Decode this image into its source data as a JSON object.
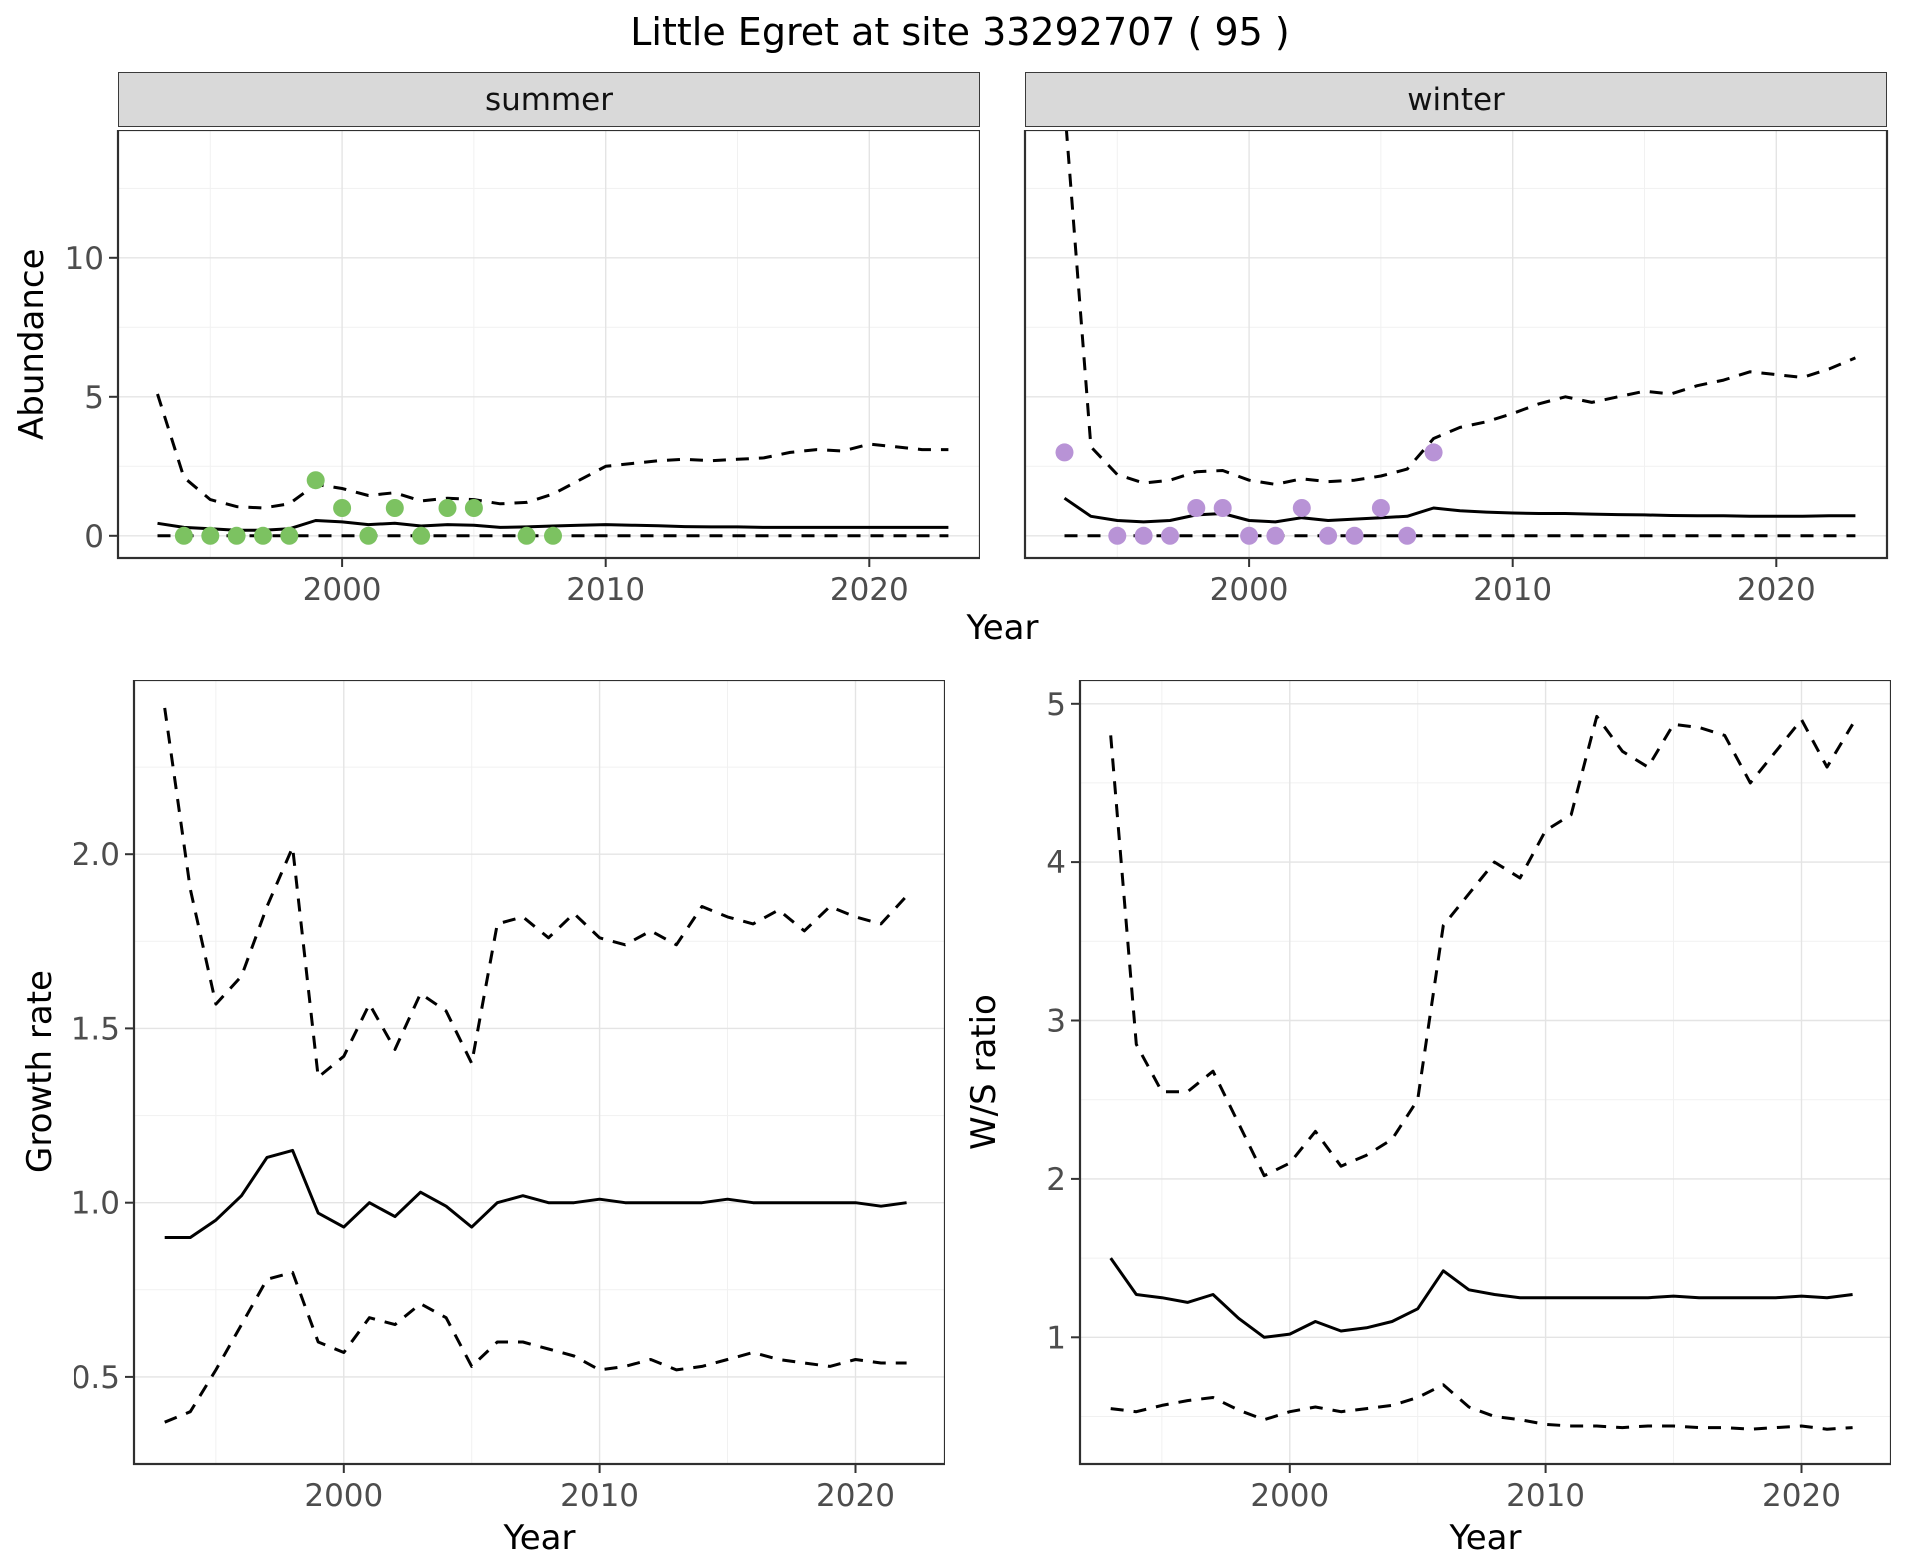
{
  "title": "Little Egret at site 33292707 ( 95 )",
  "facets": {
    "summer": "summer",
    "winter": "winter"
  },
  "axis_labels": {
    "abundance": "Abundance",
    "year": "Year",
    "growth": "Growth rate",
    "ws": "W/S ratio"
  },
  "colors": {
    "summer_points": "#7cc261",
    "winter_points": "#b893d6",
    "line": "#000000",
    "grid_major": "#e4e4e4",
    "grid_minor": "#f1f1f1",
    "panel_border": "#2f2f2f",
    "strip_bg": "#d9d9d9",
    "tick_text": "#4d4d4d"
  },
  "chart_data": [
    {
      "id": "summer-abundance",
      "target": "chart-summer",
      "type": "line",
      "title": "summer",
      "xlabel": "Year",
      "ylabel": "Abundance",
      "xlim": [
        1991.5,
        2024.2
      ],
      "ylim": [
        -0.8,
        14.6
      ],
      "x_ticks": [
        2000,
        2010,
        2020
      ],
      "x_tick_labels": [
        "2000",
        "2010",
        "2020"
      ],
      "x_minor": [
        1995,
        2005,
        2015
      ],
      "y_ticks": [
        0,
        5,
        10
      ],
      "y_tick_labels": [
        "0",
        "5",
        "10"
      ],
      "y_minor": [
        2.5,
        7.5,
        12.5
      ],
      "years": [
        1993,
        1994,
        1995,
        1996,
        1997,
        1998,
        1999,
        2000,
        2001,
        2002,
        2003,
        2004,
        2005,
        2006,
        2007,
        2008,
        2009,
        2010,
        2011,
        2012,
        2013,
        2014,
        2015,
        2016,
        2017,
        2018,
        2019,
        2020,
        2021,
        2022,
        2023
      ],
      "series": [
        {
          "name": "upper-ci",
          "dashed": true,
          "values": [
            5.1,
            2.1,
            1.3,
            1.05,
            1.0,
            1.15,
            1.85,
            1.7,
            1.45,
            1.55,
            1.25,
            1.35,
            1.3,
            1.15,
            1.2,
            1.5,
            2.0,
            2.5,
            2.6,
            2.7,
            2.75,
            2.7,
            2.75,
            2.8,
            3.0,
            3.1,
            3.05,
            3.3,
            3.2,
            3.1,
            3.1
          ]
        },
        {
          "name": "mean",
          "dashed": false,
          "values": [
            0.45,
            0.3,
            0.25,
            0.2,
            0.2,
            0.25,
            0.55,
            0.5,
            0.4,
            0.45,
            0.35,
            0.4,
            0.38,
            0.3,
            0.32,
            0.35,
            0.38,
            0.4,
            0.38,
            0.36,
            0.33,
            0.32,
            0.32,
            0.3,
            0.3,
            0.3,
            0.3,
            0.3,
            0.3,
            0.3,
            0.3
          ]
        },
        {
          "name": "lower-ci",
          "dashed": true,
          "values": [
            0,
            0,
            0,
            0,
            0,
            0,
            0,
            0,
            0,
            0,
            0,
            0,
            0,
            0,
            0,
            0,
            0,
            0,
            0,
            0,
            0,
            0,
            0,
            0,
            0,
            0,
            0,
            0,
            0,
            0,
            0
          ]
        }
      ],
      "points": {
        "name": "observed-counts-summer",
        "color": "#7cc261",
        "data": [
          [
            1994,
            0
          ],
          [
            1995,
            0
          ],
          [
            1996,
            0
          ],
          [
            1997,
            0
          ],
          [
            1998,
            0
          ],
          [
            1999,
            2
          ],
          [
            2000,
            1
          ],
          [
            2001,
            0
          ],
          [
            2002,
            1
          ],
          [
            2003,
            0
          ],
          [
            2004,
            1
          ],
          [
            2005,
            1
          ],
          [
            2007,
            0
          ],
          [
            2008,
            0
          ]
        ]
      }
    },
    {
      "id": "winter-abundance",
      "target": "chart-winter",
      "type": "line",
      "title": "winter",
      "xlabel": "Year",
      "ylabel": "Abundance",
      "xlim": [
        1991.5,
        2024.2
      ],
      "ylim": [
        -0.8,
        14.6
      ],
      "x_ticks": [
        2000,
        2010,
        2020
      ],
      "x_tick_labels": [
        "2000",
        "2010",
        "2020"
      ],
      "x_minor": [
        1995,
        2005,
        2015
      ],
      "y_ticks": [
        0,
        5,
        10
      ],
      "y_tick_labels": [
        "0",
        "5",
        "10"
      ],
      "y_minor": [
        2.5,
        7.5,
        12.5
      ],
      "years": [
        1993,
        1994,
        1995,
        1996,
        1997,
        1998,
        1999,
        2000,
        2001,
        2002,
        2003,
        2004,
        2005,
        2006,
        2007,
        2008,
        2009,
        2010,
        2011,
        2012,
        2013,
        2014,
        2015,
        2016,
        2017,
        2018,
        2019,
        2020,
        2021,
        2022,
        2023
      ],
      "series": [
        {
          "name": "upper-ci",
          "dashed": true,
          "values": [
            15.5,
            3.2,
            2.2,
            1.9,
            2.0,
            2.3,
            2.35,
            2.0,
            1.85,
            2.05,
            1.95,
            2.0,
            2.15,
            2.4,
            3.5,
            3.9,
            4.1,
            4.4,
            4.75,
            5.0,
            4.8,
            5.0,
            5.2,
            5.1,
            5.4,
            5.6,
            5.9,
            5.8,
            5.7,
            6.0,
            6.4
          ]
        },
        {
          "name": "mean",
          "dashed": false,
          "values": [
            1.35,
            0.7,
            0.55,
            0.5,
            0.55,
            0.75,
            0.8,
            0.55,
            0.5,
            0.65,
            0.55,
            0.6,
            0.65,
            0.7,
            1.0,
            0.9,
            0.85,
            0.82,
            0.8,
            0.8,
            0.78,
            0.76,
            0.75,
            0.73,
            0.72,
            0.72,
            0.7,
            0.7,
            0.7,
            0.72,
            0.72
          ]
        },
        {
          "name": "lower-ci",
          "dashed": true,
          "values": [
            0,
            0,
            0,
            0,
            0,
            0,
            0,
            0,
            0,
            0,
            0,
            0,
            0,
            0,
            0,
            0,
            0,
            0,
            0,
            0,
            0,
            0,
            0,
            0,
            0,
            0,
            0,
            0,
            0,
            0,
            0
          ]
        }
      ],
      "points": {
        "name": "observed-counts-winter",
        "color": "#b893d6",
        "data": [
          [
            1993,
            3
          ],
          [
            1995,
            0
          ],
          [
            1996,
            0
          ],
          [
            1997,
            0
          ],
          [
            1998,
            1
          ],
          [
            1999,
            1
          ],
          [
            2000,
            0
          ],
          [
            2001,
            0
          ],
          [
            2002,
            1
          ],
          [
            2003,
            0
          ],
          [
            2004,
            0
          ],
          [
            2005,
            1
          ],
          [
            2006,
            0
          ],
          [
            2007,
            3
          ]
        ]
      }
    },
    {
      "id": "growth-rate",
      "target": "chart-growth",
      "type": "line",
      "title": "Growth rate",
      "xlabel": "Year",
      "ylabel": "Growth rate",
      "xlim": [
        1991.8,
        2023.5
      ],
      "ylim": [
        0.25,
        2.5
      ],
      "x_ticks": [
        2000,
        2010,
        2020
      ],
      "x_tick_labels": [
        "2000",
        "2010",
        "2020"
      ],
      "x_minor": [
        1995,
        2005,
        2015
      ],
      "y_ticks": [
        0.5,
        1.0,
        1.5,
        2.0
      ],
      "y_tick_labels": [
        "0.5",
        "1.0",
        "1.5",
        "2.0"
      ],
      "y_minor": [
        0.75,
        1.25,
        1.75,
        2.25
      ],
      "years": [
        1993,
        1994,
        1995,
        1996,
        1997,
        1998,
        1999,
        2000,
        2001,
        2002,
        2003,
        2004,
        2005,
        2006,
        2007,
        2008,
        2009,
        2010,
        2011,
        2012,
        2013,
        2014,
        2015,
        2016,
        2017,
        2018,
        2019,
        2020,
        2021,
        2022
      ],
      "series": [
        {
          "name": "upper-ci",
          "dashed": true,
          "values": [
            2.42,
            1.9,
            1.57,
            1.65,
            1.85,
            2.02,
            1.36,
            1.42,
            1.57,
            1.44,
            1.6,
            1.55,
            1.4,
            1.8,
            1.82,
            1.76,
            1.83,
            1.76,
            1.74,
            1.78,
            1.74,
            1.85,
            1.82,
            1.8,
            1.84,
            1.78,
            1.85,
            1.82,
            1.8,
            1.88
          ]
        },
        {
          "name": "mean",
          "dashed": false,
          "values": [
            0.9,
            0.9,
            0.95,
            1.02,
            1.13,
            1.15,
            0.97,
            0.93,
            1.0,
            0.96,
            1.03,
            0.99,
            0.93,
            1.0,
            1.02,
            1.0,
            1.0,
            1.01,
            1.0,
            1.0,
            1.0,
            1.0,
            1.01,
            1.0,
            1.0,
            1.0,
            1.0,
            1.0,
            0.99,
            1.0
          ]
        },
        {
          "name": "lower-ci",
          "dashed": true,
          "values": [
            0.37,
            0.4,
            0.52,
            0.65,
            0.78,
            0.8,
            0.6,
            0.57,
            0.67,
            0.65,
            0.71,
            0.67,
            0.53,
            0.6,
            0.6,
            0.58,
            0.56,
            0.52,
            0.53,
            0.55,
            0.52,
            0.53,
            0.55,
            0.57,
            0.55,
            0.54,
            0.53,
            0.55,
            0.54,
            0.54
          ]
        }
      ]
    },
    {
      "id": "ws-ratio",
      "target": "chart-ws",
      "type": "line",
      "title": "W/S ratio",
      "xlabel": "Year",
      "ylabel": "W/S ratio",
      "xlim": [
        1991.8,
        2023.5
      ],
      "ylim": [
        0.2,
        5.15
      ],
      "x_ticks": [
        2000,
        2010,
        2020
      ],
      "x_tick_labels": [
        "2000",
        "2010",
        "2020"
      ],
      "x_minor": [
        1995,
        2005,
        2015
      ],
      "y_ticks": [
        1,
        2,
        3,
        4,
        5
      ],
      "y_tick_labels": [
        "1",
        "2",
        "3",
        "4",
        "5"
      ],
      "y_minor": [
        0.5,
        1.5,
        2.5,
        3.5,
        4.5
      ],
      "years": [
        1993,
        1994,
        1995,
        1996,
        1997,
        1998,
        1999,
        2000,
        2001,
        2002,
        2003,
        2004,
        2005,
        2006,
        2007,
        2008,
        2009,
        2010,
        2011,
        2012,
        2013,
        2014,
        2015,
        2016,
        2017,
        2018,
        2019,
        2020,
        2021,
        2022
      ],
      "series": [
        {
          "name": "upper-ci",
          "dashed": true,
          "values": [
            4.8,
            2.85,
            2.55,
            2.55,
            2.68,
            2.35,
            2.02,
            2.1,
            2.3,
            2.08,
            2.15,
            2.25,
            2.5,
            3.6,
            3.8,
            4.0,
            3.9,
            4.2,
            4.3,
            4.92,
            4.7,
            4.6,
            4.87,
            4.85,
            4.8,
            4.5,
            4.7,
            4.9,
            4.6,
            4.87
          ]
        },
        {
          "name": "mean",
          "dashed": false,
          "values": [
            1.5,
            1.27,
            1.25,
            1.22,
            1.27,
            1.12,
            1.0,
            1.02,
            1.1,
            1.04,
            1.06,
            1.1,
            1.18,
            1.42,
            1.3,
            1.27,
            1.25,
            1.25,
            1.25,
            1.25,
            1.25,
            1.25,
            1.26,
            1.25,
            1.25,
            1.25,
            1.25,
            1.26,
            1.25,
            1.27
          ]
        },
        {
          "name": "lower-ci",
          "dashed": true,
          "values": [
            0.55,
            0.53,
            0.57,
            0.6,
            0.62,
            0.54,
            0.48,
            0.53,
            0.56,
            0.53,
            0.55,
            0.57,
            0.62,
            0.7,
            0.56,
            0.5,
            0.48,
            0.45,
            0.44,
            0.44,
            0.43,
            0.44,
            0.44,
            0.43,
            0.43,
            0.42,
            0.43,
            0.44,
            0.42,
            0.43
          ]
        }
      ]
    }
  ]
}
